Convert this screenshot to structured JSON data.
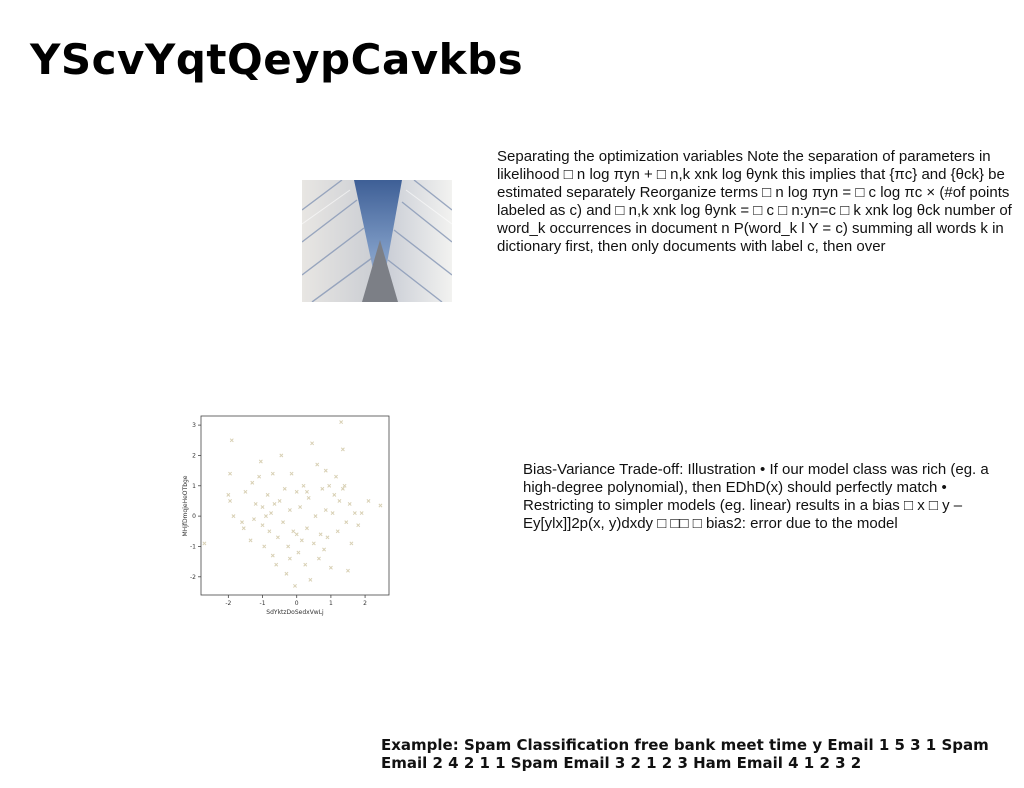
{
  "title": "YScvYqtQeypCavkbs",
  "paragraphs": {
    "p1": "Separating the optimization variables Note the separation of parameters in likelihood □ n log πyn + □ n,k xnk log θynk this implies that {πc} and {θck} be estimated separately Reorganize terms □ n log πyn = □ c log πc × (#of points labeled as c) and □ n,k xnk log θynk = □ c □ n:yn=c □ k xnk log θck number of word_k occurrences in document n P(word_k l Y = c) summing all words k in dictionary first, then only documents with label c, then over",
    "p2": "Bias-Variance Trade-off: Illustration • If our model class was rich (eg. a high-degree polynomial), then EDhD(x) should perfectly match • Restricting to simpler models (eg. linear) results in a bias □ x □ y – Ey[ylx]]2p(x, y)dxdy □ □□ □ bias2: error due to the model",
    "p3": "Example: Spam Classification free bank meet time y Email 1 5 3 1 Spam Email 2 4 2 1 1 Spam Email 3 2 1 2 3 Ham Email 4 1 2 3 2"
  },
  "chart_data": {
    "type": "scatter",
    "xlabel": "SdYktzDoSedxVwLj",
    "ylabel": "MHjfDmqjeHeOTbge",
    "xlim": [
      -2.8,
      2.7
    ],
    "ylim": [
      -2.6,
      3.3
    ],
    "xticks": [
      -2,
      -1,
      0,
      1,
      2
    ],
    "yticks": [
      -2,
      -1,
      0,
      1,
      2,
      3
    ],
    "marker_color": "#d8d0b4",
    "points": [
      [
        -2.7,
        -0.9
      ],
      [
        -1.9,
        2.5
      ],
      [
        -1.95,
        1.4
      ],
      [
        -2.0,
        0.7
      ],
      [
        -1.95,
        0.5
      ],
      [
        -1.85,
        0.0
      ],
      [
        -1.5,
        0.8
      ],
      [
        -1.55,
        -0.4
      ],
      [
        -1.35,
        -0.8
      ],
      [
        -1.3,
        1.1
      ],
      [
        -1.2,
        0.4
      ],
      [
        -1.25,
        -0.1
      ],
      [
        -1.1,
        1.3
      ],
      [
        -1.05,
        1.8
      ],
      [
        -1.0,
        0.3
      ],
      [
        -1.0,
        -0.3
      ],
      [
        -0.95,
        -1.0
      ],
      [
        -0.9,
        0.0
      ],
      [
        -0.85,
        0.7
      ],
      [
        -0.8,
        -0.5
      ],
      [
        -0.75,
        0.1
      ],
      [
        -0.7,
        1.4
      ],
      [
        -0.7,
        -1.3
      ],
      [
        -0.6,
        -1.6
      ],
      [
        -0.55,
        -0.7
      ],
      [
        -0.5,
        0.5
      ],
      [
        -0.45,
        2.0
      ],
      [
        -0.4,
        -0.2
      ],
      [
        -0.35,
        0.9
      ],
      [
        -0.3,
        -1.9
      ],
      [
        -0.25,
        -1.0
      ],
      [
        -0.2,
        0.2
      ],
      [
        -0.15,
        1.4
      ],
      [
        -0.1,
        -0.5
      ],
      [
        -0.05,
        -2.3
      ],
      [
        0.0,
        -0.6
      ],
      [
        0.0,
        0.8
      ],
      [
        0.05,
        -1.2
      ],
      [
        0.1,
        0.3
      ],
      [
        0.15,
        -0.8
      ],
      [
        0.2,
        1.0
      ],
      [
        0.25,
        -1.6
      ],
      [
        0.3,
        -0.4
      ],
      [
        0.35,
        0.6
      ],
      [
        0.4,
        -2.1
      ],
      [
        0.45,
        2.4
      ],
      [
        0.5,
        -0.9
      ],
      [
        0.55,
        0.0
      ],
      [
        0.6,
        1.7
      ],
      [
        0.65,
        -1.4
      ],
      [
        0.7,
        -0.6
      ],
      [
        0.75,
        0.9
      ],
      [
        0.8,
        -1.1
      ],
      [
        0.85,
        0.2
      ],
      [
        0.9,
        -0.7
      ],
      [
        0.95,
        1.0
      ],
      [
        1.0,
        -1.7
      ],
      [
        1.05,
        0.1
      ],
      [
        1.1,
        0.7
      ],
      [
        1.15,
        1.3
      ],
      [
        1.2,
        -0.5
      ],
      [
        1.25,
        0.5
      ],
      [
        1.3,
        3.1
      ],
      [
        1.35,
        2.2
      ],
      [
        1.35,
        0.9
      ],
      [
        1.4,
        1.0
      ],
      [
        1.45,
        -0.2
      ],
      [
        1.5,
        -1.8
      ],
      [
        1.55,
        0.4
      ],
      [
        1.6,
        -0.9
      ],
      [
        1.7,
        0.1
      ],
      [
        1.8,
        -0.3
      ],
      [
        1.9,
        0.1
      ],
      [
        2.1,
        0.5
      ],
      [
        2.45,
        0.35
      ],
      [
        -0.65,
        0.4
      ],
      [
        0.3,
        0.8
      ],
      [
        -1.6,
        -0.2
      ],
      [
        0.85,
        1.5
      ],
      [
        -0.2,
        -1.4
      ]
    ]
  }
}
